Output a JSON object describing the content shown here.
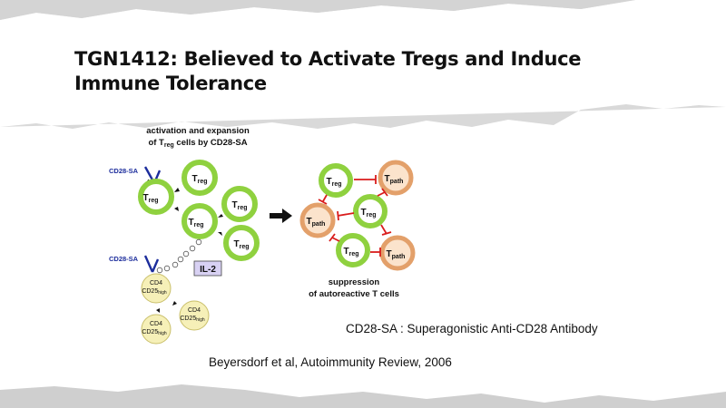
{
  "slide": {
    "title_line1": "TGN1412: Believed to Activate Tregs and Induce",
    "title_line2": "Immune Tolerance",
    "definition": "CD28-SA : Superagonistic Anti-CD28 Antibody",
    "citation": "Beyersdorf et al, Autoimmunity Review, 2006"
  },
  "figure": {
    "left_heading_line1": "activation and expansion",
    "left_heading_line2_prefix": "of T",
    "left_heading_line2_sub": "reg",
    "left_heading_line2_suffix": " cells by CD28-SA",
    "cd28sa_label_top": "CD28-SA",
    "cd28sa_label_bottom": "CD28-SA",
    "il2_label": "IL-2",
    "treg_main": "T",
    "treg_sub": "reg",
    "tpath_main": "T",
    "tpath_sub": "path",
    "cd4_label": "CD4",
    "cd25_main": "CD25",
    "cd25_sub": "high",
    "right_heading_line1": "suppression",
    "right_heading_line2": "of autoreactive T cells"
  },
  "colors": {
    "treg_ring": "#8fd13f",
    "treg_fill": "#ffffff",
    "tpath_ring": "#e3a06a",
    "tpath_fill": "#fbe3cc",
    "naive_fill": "#f6f0b8",
    "antibody": "#1c2d9c",
    "inhibit": "#d91c1c",
    "il2_box": "#d8d1f3"
  }
}
